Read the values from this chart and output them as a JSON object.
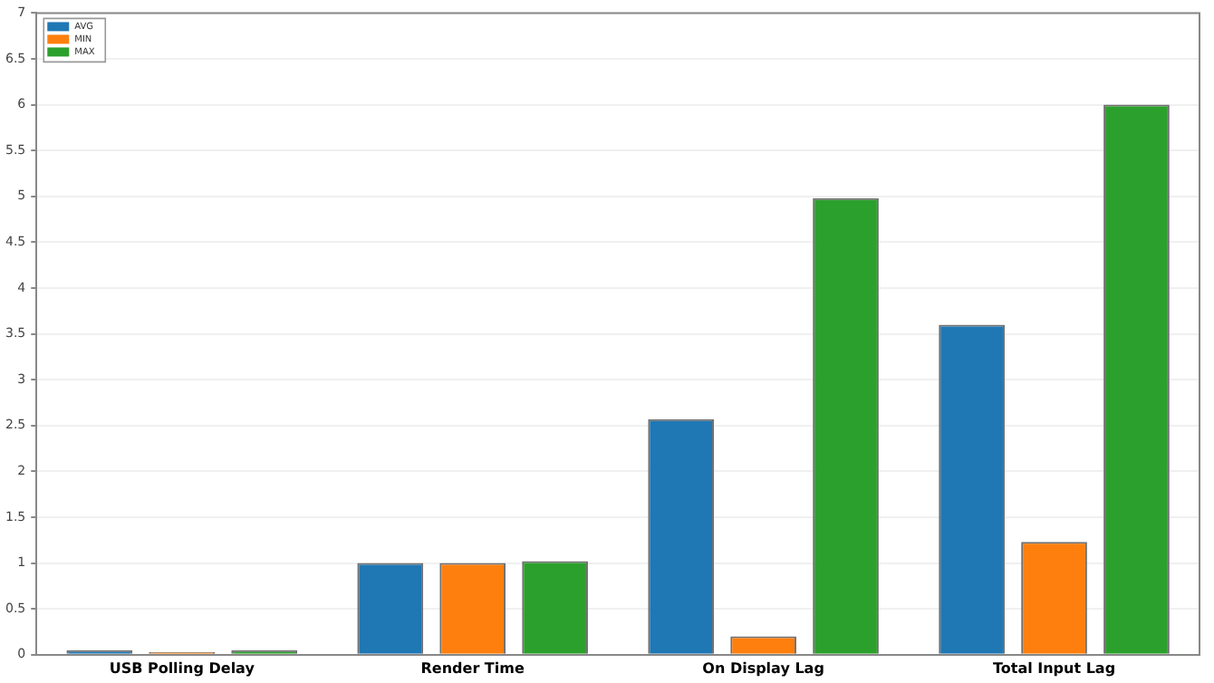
{
  "chart_data": {
    "type": "bar",
    "categories": [
      "USB Polling Delay",
      "Render Time",
      "On Display Lag",
      "Total Input Lag"
    ],
    "series": [
      {
        "name": "AVG",
        "color": "#1f77b4",
        "values": [
          0.05,
          1.0,
          2.57,
          3.6
        ]
      },
      {
        "name": "MIN",
        "color": "#ff7f0e",
        "values": [
          0.03,
          1.0,
          0.2,
          1.23
        ]
      },
      {
        "name": "MAX",
        "color": "#2ca02c",
        "values": [
          0.05,
          1.02,
          4.98,
          6.0
        ]
      }
    ],
    "ylim": [
      0,
      7
    ],
    "yticks": [
      0,
      0.5,
      1,
      1.5,
      2,
      2.5,
      3,
      3.5,
      4,
      4.5,
      5,
      5.5,
      6,
      6.5,
      7
    ],
    "grid": "y",
    "legend": "top left"
  }
}
